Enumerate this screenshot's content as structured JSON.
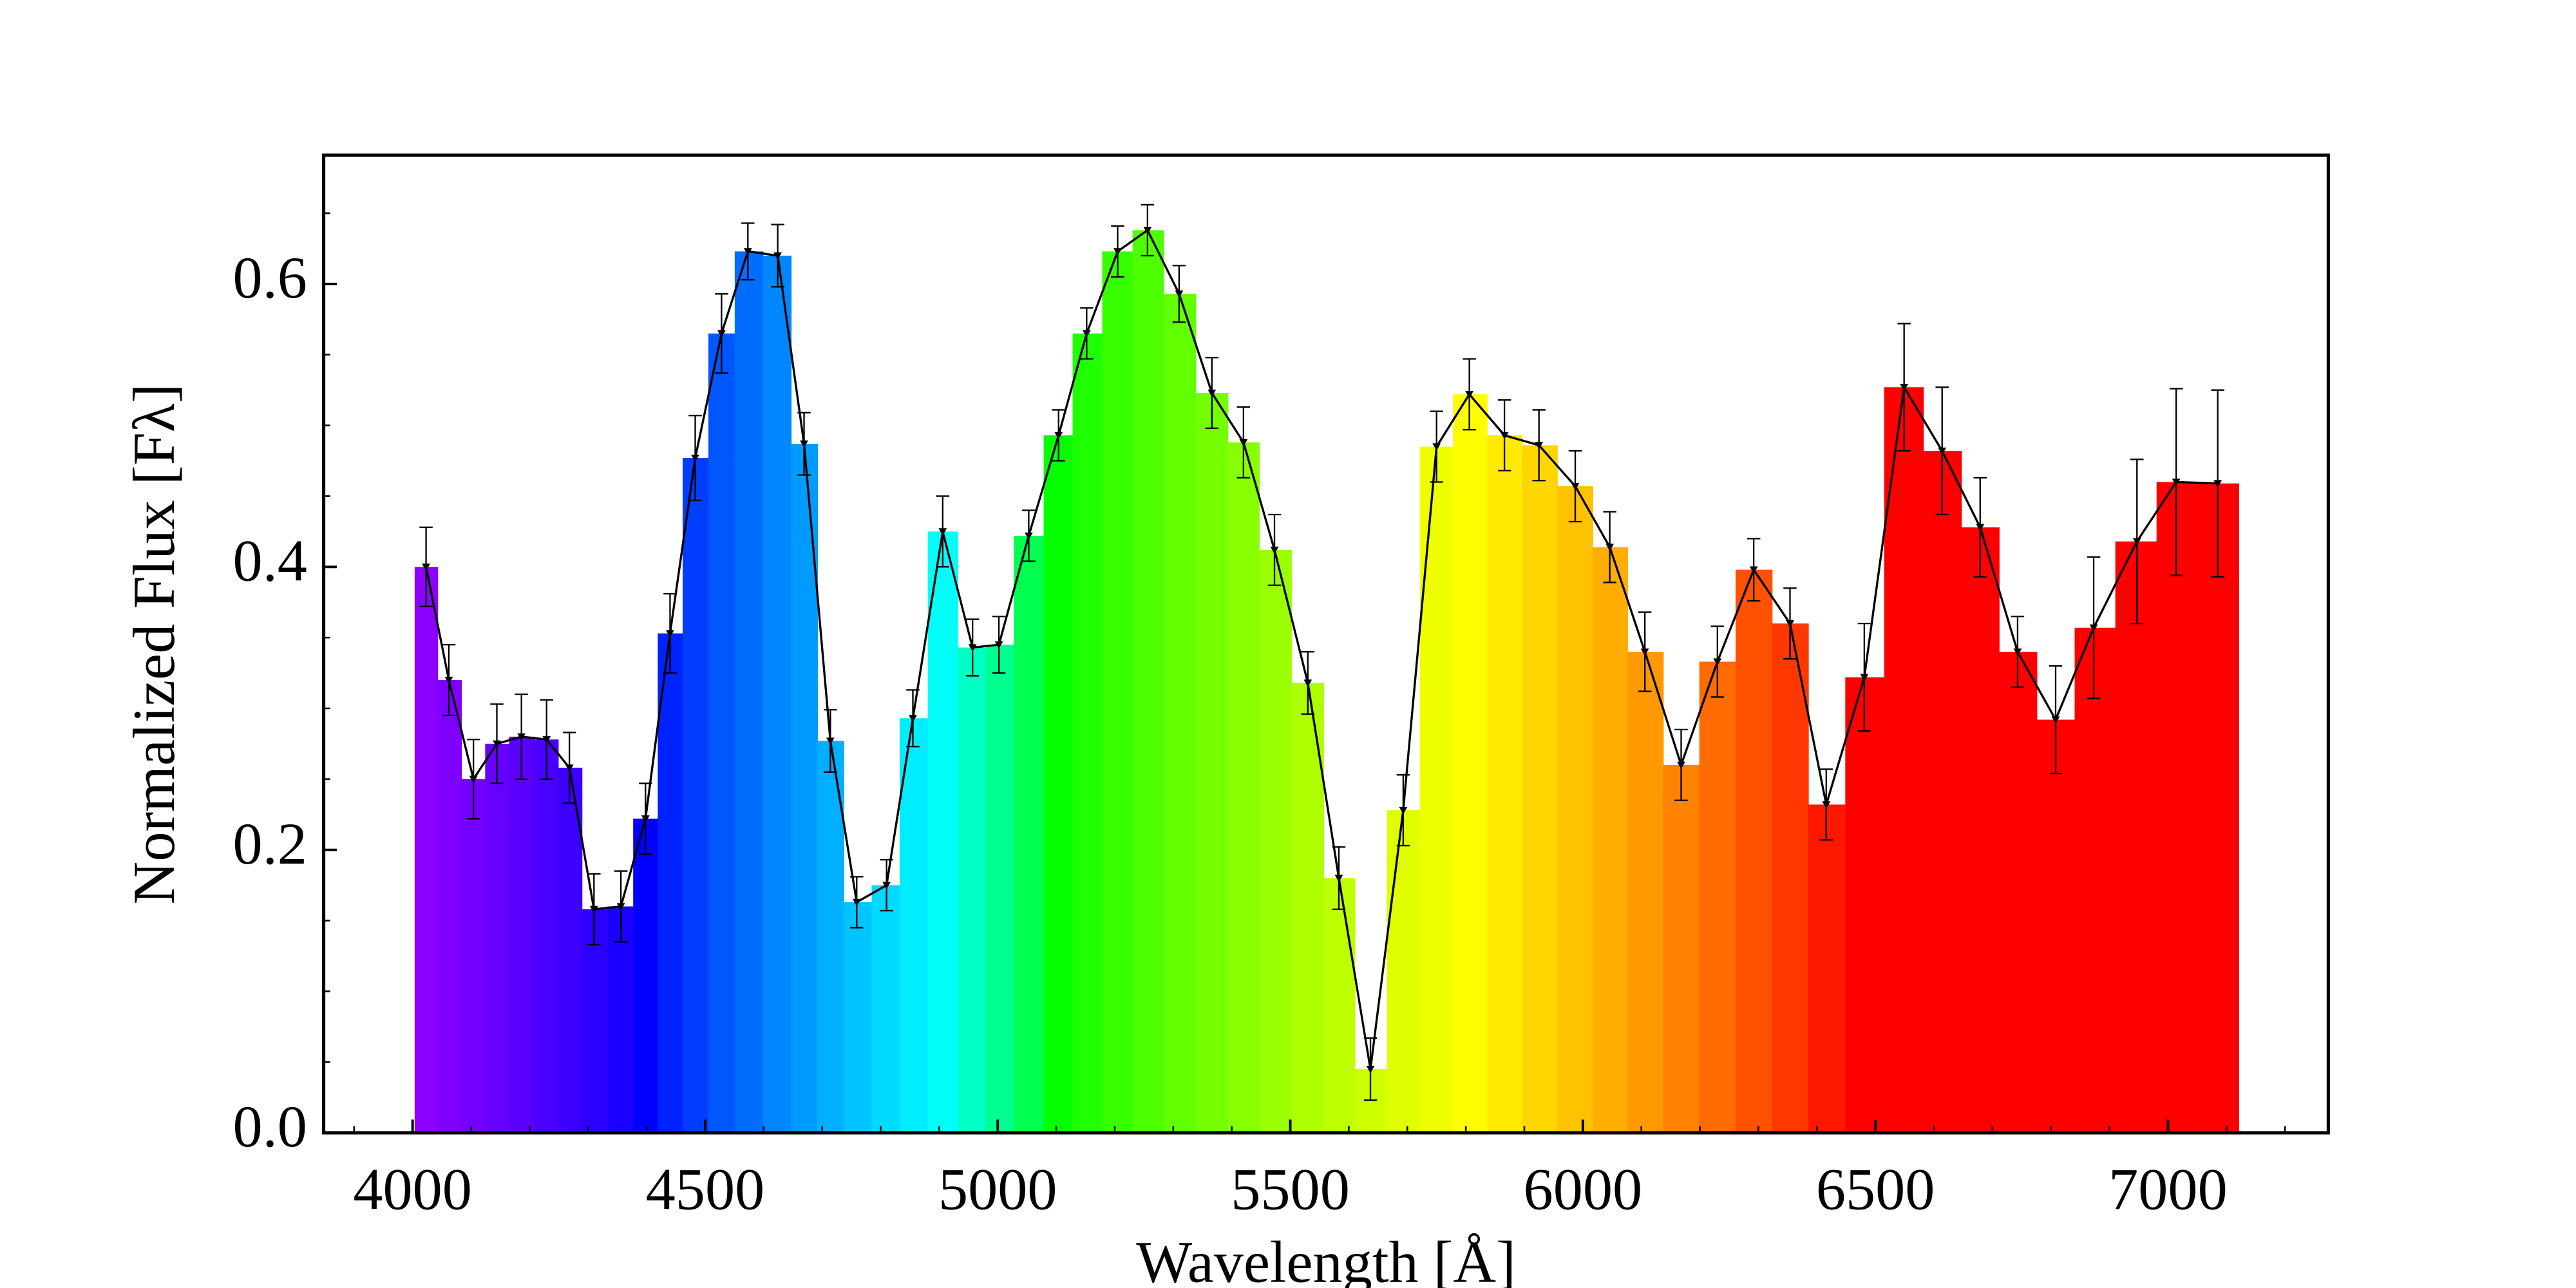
{
  "chart_data": {
    "type": "bar",
    "xlabel": "Wavelength [Å]",
    "ylabel": "Normalized Flux [Fλ]",
    "x": [
      4023,
      4062,
      4104,
      4144,
      4186,
      4229,
      4268,
      4310,
      4356,
      4398,
      4440,
      4483,
      4528,
      4573,
      4624,
      4669,
      4714,
      4759,
      4810,
      4855,
      4906,
      4957,
      5002,
      5053,
      5104,
      5152,
      5205,
      5256,
      5310,
      5366,
      5420,
      5473,
      5530,
      5583,
      5637,
      5693,
      5750,
      5806,
      5866,
      5925,
      5987,
      6046,
      6106,
      6168,
      6230,
      6292,
      6354,
      6416,
      6481,
      6549,
      6614,
      6679,
      6743,
      6808,
      6873,
      6947,
      7014,
      7085
    ],
    "values": [
      0.4,
      0.32,
      0.25,
      0.275,
      0.28,
      0.278,
      0.258,
      0.158,
      0.16,
      0.222,
      0.353,
      0.477,
      0.565,
      0.623,
      0.62,
      0.487,
      0.277,
      0.163,
      0.175,
      0.293,
      0.425,
      0.343,
      0.345,
      0.422,
      0.493,
      0.565,
      0.623,
      0.638,
      0.593,
      0.523,
      0.488,
      0.412,
      0.318,
      0.18,
      0.045,
      0.228,
      0.485,
      0.522,
      0.493,
      0.486,
      0.457,
      0.414,
      0.34,
      0.26,
      0.333,
      0.398,
      0.36,
      0.232,
      0.322,
      0.527,
      0.482,
      0.428,
      0.34,
      0.292,
      0.357,
      0.418,
      0.46,
      0.459
    ],
    "errors": [
      0.028,
      0.025,
      0.028,
      0.028,
      0.03,
      0.028,
      0.025,
      0.025,
      0.025,
      0.025,
      0.028,
      0.03,
      0.028,
      0.02,
      0.022,
      0.022,
      0.022,
      0.018,
      0.018,
      0.02,
      0.025,
      0.02,
      0.02,
      0.018,
      0.018,
      0.018,
      0.018,
      0.018,
      0.02,
      0.025,
      0.025,
      0.025,
      0.022,
      0.022,
      0.022,
      0.025,
      0.025,
      0.025,
      0.025,
      0.025,
      0.025,
      0.025,
      0.028,
      0.025,
      0.025,
      0.022,
      0.025,
      0.025,
      0.038,
      0.045,
      0.045,
      0.035,
      0.025,
      0.038,
      0.05,
      0.058,
      0.066,
      0.066
    ],
    "line_color": "#000000",
    "xlim": [
      3848,
      7274
    ],
    "xticks": [
      4000,
      4500,
      5000,
      5500,
      6000,
      6500,
      7000
    ],
    "xminorticks": [
      3900,
      4100,
      4200,
      4300,
      4400,
      4600,
      4700,
      4800,
      4900,
      5100,
      5200,
      5300,
      5400,
      5600,
      5700,
      5800,
      5900,
      6100,
      6200,
      6300,
      6400,
      6600,
      6700,
      6800,
      6900,
      7100,
      7200
    ],
    "ylim": [
      0,
      0.691
    ],
    "yticks": [
      {
        "value": 0,
        "label": "0.0"
      },
      0.2,
      0.4,
      0.6
    ],
    "yminorticks": [
      0.05,
      0.1,
      0.15,
      0.25,
      0.3,
      0.35,
      0.45,
      0.5,
      0.55,
      0.65
    ]
  }
}
